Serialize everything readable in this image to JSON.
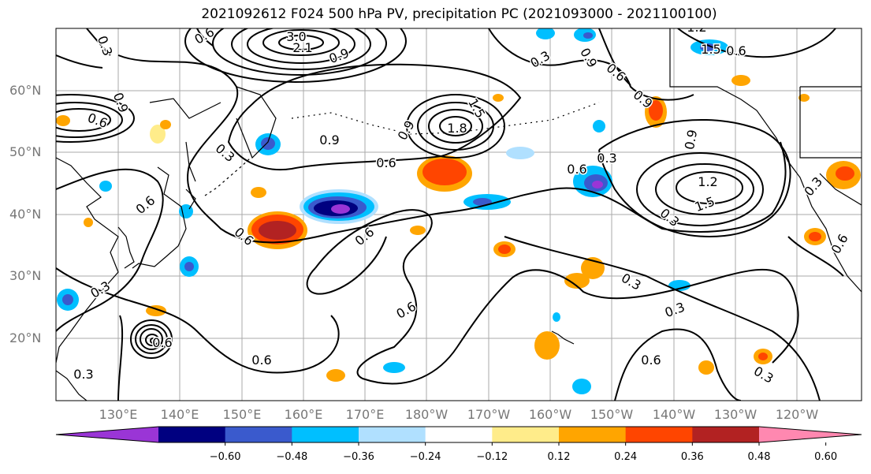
{
  "title": "2021092612 F024 500 hPa PV, precipitation PC (2021093000 - 2021100100)",
  "lat_labels": [
    "60°N",
    "50°N",
    "40°N",
    "30°N",
    "20°N"
  ],
  "lon_labels": [
    "130°E",
    "140°E",
    "150°E",
    "160°E",
    "170°E",
    "180°W",
    "170°W",
    "160°W",
    "150°W",
    "140°W",
    "130°W",
    "120°W"
  ],
  "colorbar": {
    "colors": [
      "#9a35d6",
      "#000080",
      "#3a5acd",
      "#00bfff",
      "#b0e0ff",
      "#ffffff",
      "#ffec8a",
      "#ffa500",
      "#ff4500",
      "#b22222",
      "#ff88b0"
    ],
    "labels": [
      "−0.60",
      "−0.48",
      "−0.36",
      "−0.24",
      "−0.12",
      "0.12",
      "0.24",
      "0.36",
      "0.48",
      "0.60"
    ]
  },
  "contour_labels": [
    "0.3",
    "0.6",
    "0.9",
    "1.2",
    "1.5",
    "1.8",
    "2.1",
    "3.0"
  ]
}
